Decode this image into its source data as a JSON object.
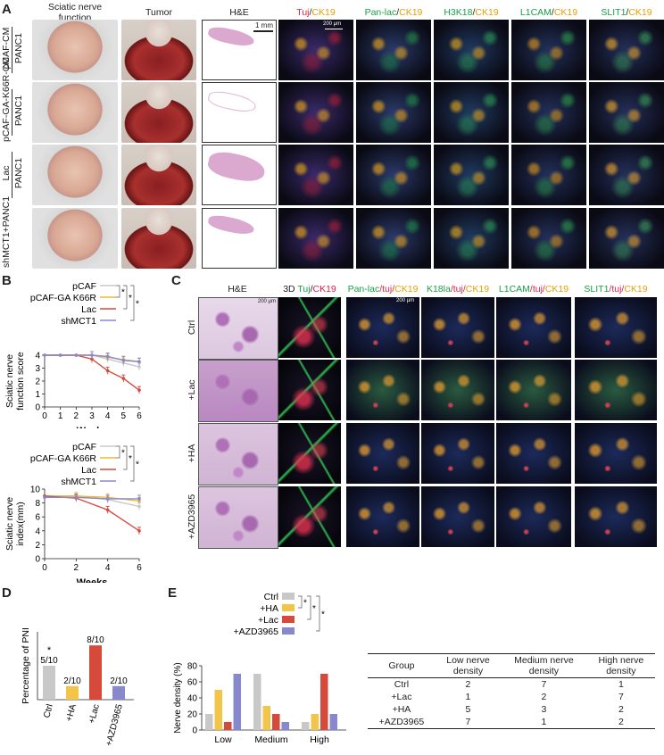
{
  "panels": {
    "a": "A",
    "b": "B",
    "c": "C",
    "d": "D",
    "e": "E"
  },
  "panelA": {
    "col_headers": [
      "Sciatic nerve\nfunction",
      "Tumor",
      "H&E"
    ],
    "if_headers": [
      {
        "a": "Tuj",
        "b": "CK19",
        "ca": "#e0204a",
        "cb": "#e8a000"
      },
      {
        "a": "Pan-lac",
        "b": "CK19",
        "ca": "#18a048",
        "cb": "#e8a000"
      },
      {
        "a": "H3K18",
        "b": "CK19",
        "ca": "#18a048",
        "cb": "#e8a000"
      },
      {
        "a": "L1CAM",
        "b": "CK19",
        "ca": "#18a048",
        "cb": "#e8a000"
      },
      {
        "a": "SLIT1",
        "b": "CK19",
        "ca": "#18a048",
        "cb": "#e8a000"
      }
    ],
    "scale_he": "1 mm",
    "scale_if": "200 μm",
    "rows": [
      {
        "top": "pCAF-CM",
        "bottom": "PANC1"
      },
      {
        "top": "pCAF-GA-K66R-CM",
        "bottom": "PANC1"
      },
      {
        "top": "Lac",
        "bottom": "PANC1"
      },
      {
        "top": "shMCT1+PANC1",
        "bottom": ""
      }
    ]
  },
  "panelC": {
    "col_headers": [
      {
        "parts": [
          {
            "t": "H&E",
            "c": "#222"
          }
        ]
      },
      {
        "parts": [
          {
            "t": "3D ",
            "c": "#222"
          },
          {
            "t": "Tuj",
            "c": "#18a048"
          },
          {
            "t": "/",
            "c": "#222"
          },
          {
            "t": "CK19",
            "c": "#e0204a"
          }
        ]
      },
      {
        "parts": [
          {
            "t": "Pan-lac",
            "c": "#18a048"
          },
          {
            "t": "/tuj/",
            "c": "#e0204a"
          },
          {
            "t": "CK19",
            "c": "#e8a000"
          }
        ]
      },
      {
        "parts": [
          {
            "t": "K18la",
            "c": "#18a048"
          },
          {
            "t": "/tuj/",
            "c": "#e0204a"
          },
          {
            "t": "CK19",
            "c": "#e8a000"
          }
        ]
      },
      {
        "parts": [
          {
            "t": "L1CAM",
            "c": "#18a048"
          },
          {
            "t": "/tuj/",
            "c": "#e0204a"
          },
          {
            "t": "CK19",
            "c": "#e8a000"
          }
        ]
      },
      {
        "parts": [
          {
            "t": "SLIT1",
            "c": "#18a048"
          },
          {
            "t": "/tuj/",
            "c": "#e0204a"
          },
          {
            "t": "CK19",
            "c": "#e8a000"
          }
        ]
      }
    ],
    "rows": [
      "Ctrl",
      "+Lac",
      "+HA",
      "+AZD3965"
    ],
    "scale": "200 μm"
  },
  "table": {
    "headers": [
      "Group",
      "Low nerve\ndensity",
      "Medium nerve\ndensity",
      "High nerve\ndensity"
    ],
    "rows": [
      [
        "Ctrl",
        "2",
        "7",
        "1"
      ],
      [
        "+Lac",
        "1",
        "2",
        "7"
      ],
      [
        "+HA",
        "5",
        "3",
        "2"
      ],
      [
        "+AZD3965",
        "7",
        "1",
        "2"
      ]
    ]
  },
  "chart_data": [
    {
      "type": "line",
      "panel": "B-top",
      "ylabel": "Sciatic nerve\nfunction score",
      "xlabel": "Weeks",
      "x": [
        0,
        1,
        2,
        3,
        4,
        5,
        6
      ],
      "xticks": [
        "0",
        "1",
        "2",
        "3",
        "4",
        "5",
        "6"
      ],
      "yticks": [
        "0",
        "1",
        "2",
        "3",
        "4"
      ],
      "ylim": [
        0,
        4
      ],
      "xlim": [
        0,
        6
      ],
      "significance": [
        "*",
        "*",
        "*"
      ],
      "series": [
        {
          "name": "pCAF",
          "color": "#c8c8c8",
          "x": [
            0,
            1,
            2,
            3,
            4,
            5,
            6
          ],
          "values": [
            4,
            4,
            4,
            4,
            3.7,
            3.4,
            3.1
          ]
        },
        {
          "name": "pCAF-GA K66R",
          "color": "#f2b830",
          "x": [
            0,
            1,
            2,
            3,
            4,
            5,
            6
          ],
          "values": [
            4,
            4,
            4,
            4,
            3.85,
            3.65,
            3.5
          ]
        },
        {
          "name": "Lac",
          "color": "#d64a3c",
          "x": [
            0,
            1,
            2,
            3,
            4,
            5,
            6
          ],
          "values": [
            4,
            4,
            4,
            3.7,
            2.8,
            2.2,
            1.3
          ]
        },
        {
          "name": "shMCT1",
          "color": "#8888cc",
          "x": [
            0,
            1,
            2,
            3,
            4,
            5,
            6
          ],
          "values": [
            4,
            4,
            4,
            4,
            3.9,
            3.6,
            3.5
          ]
        }
      ]
    },
    {
      "type": "line",
      "panel": "B-bottom",
      "ylabel": "Sciatic nerve\nindex(mm)",
      "xlabel": "Weeks",
      "x": [
        0,
        2,
        4,
        6
      ],
      "xticks": [
        "0",
        "2",
        "4",
        "6"
      ],
      "yticks": [
        "0",
        "2",
        "4",
        "6",
        "8",
        "10"
      ],
      "ylim": [
        0,
        10
      ],
      "xlim": [
        0,
        6
      ],
      "significance": [
        "*",
        "*",
        "*"
      ],
      "series": [
        {
          "name": "pCAF",
          "color": "#c8c8c8",
          "x": [
            0,
            2,
            4,
            6
          ],
          "values": [
            9,
            9,
            8.5,
            7.5
          ]
        },
        {
          "name": "pCAF-GA K66R",
          "color": "#f2b830",
          "x": [
            0,
            2,
            4,
            6
          ],
          "values": [
            9,
            9,
            8.8,
            8.3
          ]
        },
        {
          "name": "Lac",
          "color": "#d64a3c",
          "x": [
            0,
            2,
            4,
            6
          ],
          "values": [
            9,
            8.7,
            7,
            4
          ]
        },
        {
          "name": "shMCT1",
          "color": "#8888cc",
          "x": [
            0,
            2,
            4,
            6
          ],
          "values": [
            8.8,
            8.8,
            8.6,
            8.6
          ]
        }
      ]
    },
    {
      "type": "bar",
      "panel": "D",
      "ylabel": "Percentage of PNI",
      "categories": [
        "Ctrl",
        "+HA",
        "+Lac",
        "+AZD3965"
      ],
      "values": [
        50,
        20,
        80,
        20
      ],
      "colors": [
        "#c8c8c8",
        "#f2c54a",
        "#d64a3c",
        "#8888cc"
      ],
      "labels": [
        "5/10",
        "2/10",
        "8/10",
        "2/10"
      ],
      "marks": [
        "*",
        "",
        "",
        ""
      ],
      "ylim": [
        0,
        100
      ]
    },
    {
      "type": "bar",
      "panel": "E",
      "ylabel": "Nerve density (%)",
      "categories": [
        "Low",
        "Medium",
        "High"
      ],
      "yticks": [
        "0",
        "20",
        "40",
        "60",
        "80"
      ],
      "ylim": [
        0,
        80
      ],
      "significance": [
        "*",
        "*",
        "*"
      ],
      "series": [
        {
          "name": "Ctrl",
          "color": "#c8c8c8",
          "values": [
            20,
            70,
            10
          ]
        },
        {
          "name": "+HA",
          "color": "#f2c54a",
          "values": [
            50,
            30,
            20
          ]
        },
        {
          "name": "+Lac",
          "color": "#d64a3c",
          "values": [
            10,
            20,
            70
          ]
        },
        {
          "name": "+AZD3965",
          "color": "#8888cc",
          "values": [
            70,
            10,
            20
          ]
        }
      ]
    }
  ]
}
